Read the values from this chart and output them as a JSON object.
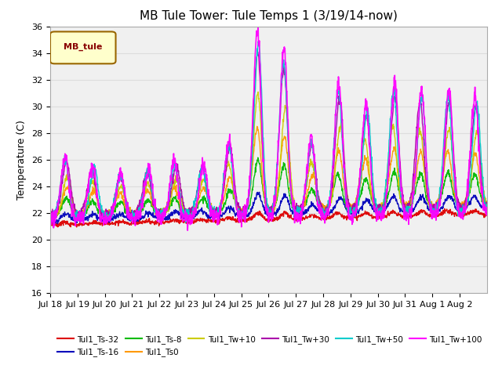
{
  "title": "MB Tule Tower: Tule Temps 1 (3/19/14-now)",
  "ylabel": "Temperature (C)",
  "ylim": [
    16,
    36
  ],
  "yticks": [
    16,
    18,
    20,
    22,
    24,
    26,
    28,
    30,
    32,
    34,
    36
  ],
  "xlabel_ticks": [
    "Jul 18",
    "Jul 19",
    "Jul 20",
    "Jul 21",
    "Jul 22",
    "Jul 23",
    "Jul 24",
    "Jul 25",
    "Jul 26",
    "Jul 27",
    "Jul 28",
    "Jul 29",
    "Jul 30",
    "Jul 31",
    "Aug 1",
    "Aug 2"
  ],
  "n_days": 16,
  "legend_box_text": "MB_tule",
  "legend_box_color": "#ffffcc",
  "legend_box_border": "#996600",
  "series": [
    {
      "label": "Tul1_Ts-32",
      "color": "#dd0000",
      "lw": 1.0
    },
    {
      "label": "Tul1_Ts-16",
      "color": "#0000bb",
      "lw": 1.0
    },
    {
      "label": "Tul1_Ts-8",
      "color": "#00bb00",
      "lw": 1.0
    },
    {
      "label": "Tul1_Ts0",
      "color": "#ff9900",
      "lw": 1.0
    },
    {
      "label": "Tul1_Tw+10",
      "color": "#cccc00",
      "lw": 1.0
    },
    {
      "label": "Tul1_Tw+30",
      "color": "#aa00aa",
      "lw": 1.0
    },
    {
      "label": "Tul1_Tw+50",
      "color": "#00cccc",
      "lw": 1.0
    },
    {
      "label": "Tul1_Tw+100",
      "color": "#ff00ff",
      "lw": 1.2
    }
  ],
  "background_color": "#ffffff",
  "grid_color": "#dddddd",
  "title_fontsize": 11,
  "label_fontsize": 9,
  "tick_fontsize": 8
}
